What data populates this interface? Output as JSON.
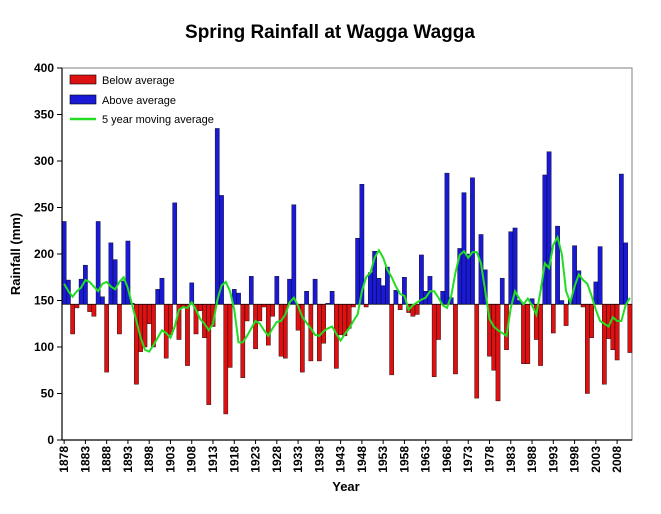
{
  "chart_data": {
    "type": "bar",
    "title": "Spring Rainfall at Wagga Wagga",
    "xlabel": "Year",
    "ylabel": "Rainfall (mm)",
    "ylim": [
      0,
      400
    ],
    "yticks": [
      0,
      50,
      100,
      150,
      200,
      250,
      300,
      350,
      400
    ],
    "xticks": [
      1878,
      1883,
      1888,
      1893,
      1898,
      1903,
      1908,
      1913,
      1918,
      1923,
      1928,
      1933,
      1938,
      1943,
      1948,
      1953,
      1958,
      1963,
      1968,
      1973,
      1978,
      1983,
      1988,
      1993,
      1998,
      2003,
      2008
    ],
    "baseline": 146,
    "first_year": 1878,
    "values": [
      235,
      172,
      114,
      142,
      173,
      188,
      138,
      133,
      235,
      154,
      73,
      212,
      194,
      114,
      171,
      214,
      147,
      60,
      95,
      100,
      125,
      100,
      162,
      174,
      88,
      113,
      255,
      108,
      142,
      80,
      169,
      114,
      139,
      110,
      38,
      122,
      335,
      263,
      28,
      78,
      162,
      158,
      67,
      128,
      176,
      98,
      128,
      143,
      102,
      133,
      176,
      90,
      88,
      173,
      253,
      118,
      73,
      160,
      85,
      173,
      85,
      104,
      147,
      160,
      77,
      113,
      112,
      120,
      143,
      217,
      275,
      143,
      180,
      203,
      174,
      166,
      186,
      70,
      161,
      140,
      175,
      137,
      133,
      135,
      199,
      160,
      176,
      68,
      108,
      160,
      287,
      153,
      71,
      206,
      266,
      200,
      282,
      45,
      221,
      183,
      90,
      75,
      42,
      174,
      97,
      224,
      228,
      150,
      82,
      82,
      152,
      108,
      80,
      285,
      310,
      115,
      230,
      150,
      123,
      151,
      209,
      182,
      143,
      50,
      110,
      170,
      208,
      60,
      109,
      97,
      86,
      286,
      212,
      94
    ],
    "moving_average": [
      168,
      160,
      154,
      160,
      164,
      172,
      170,
      165,
      160,
      168,
      170,
      165,
      162,
      170,
      175,
      163,
      145,
      128,
      110,
      97,
      95,
      102,
      110,
      118,
      115,
      110,
      122,
      140,
      143,
      142,
      148,
      140,
      130,
      125,
      118,
      125,
      150,
      166,
      170,
      160,
      140,
      105,
      105,
      112,
      120,
      128,
      125,
      118,
      112,
      120,
      127,
      128,
      135,
      148,
      153,
      144,
      132,
      126,
      120,
      113,
      112,
      117,
      120,
      122,
      114,
      107,
      114,
      120,
      128,
      135,
      160,
      175,
      180,
      196,
      204,
      196,
      183,
      175,
      165,
      157,
      155,
      140,
      145,
      148,
      151,
      153,
      160,
      160,
      153,
      145,
      142,
      155,
      180,
      199,
      203,
      196,
      202,
      202,
      190,
      160,
      130,
      122,
      118,
      115,
      112,
      142,
      160,
      152,
      146,
      152,
      145,
      135,
      160,
      190,
      185,
      210,
      218,
      200,
      160,
      148,
      165,
      178,
      172,
      168,
      155,
      140,
      128,
      125,
      122,
      132,
      128,
      128,
      145,
      153
    ]
  },
  "legend": {
    "below": "Below average",
    "above": "Above average",
    "ma": "5 year moving average"
  },
  "colors": {
    "below": "#dd1111",
    "above": "#1a1ad6",
    "ma": "#22dd22",
    "axis": "#000000",
    "frame": "#7f7f7f"
  }
}
